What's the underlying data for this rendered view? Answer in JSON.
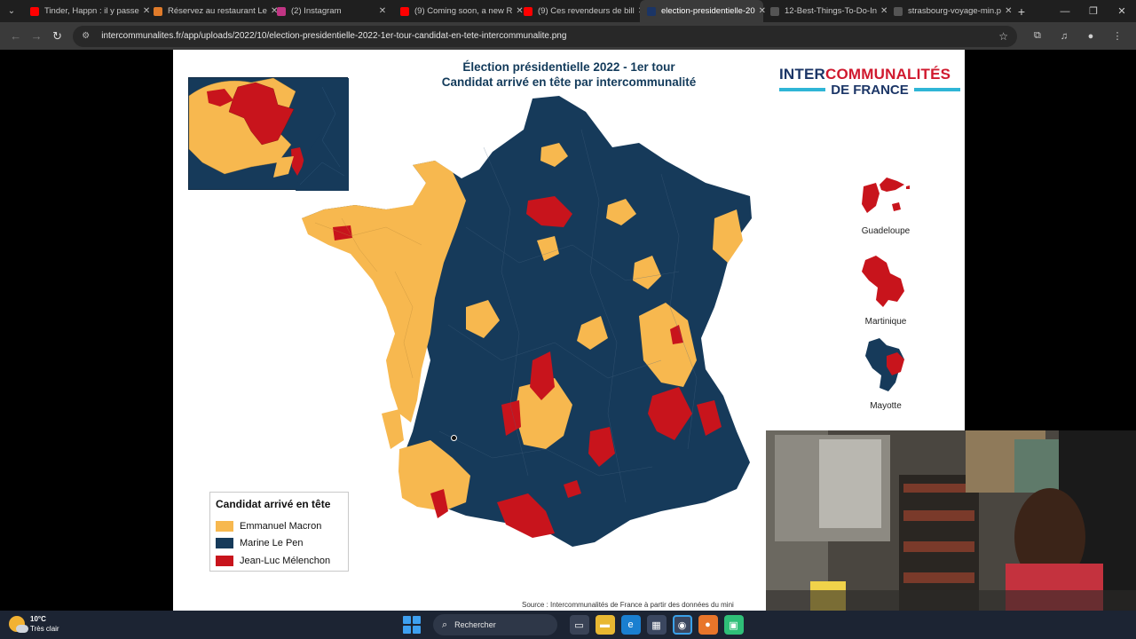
{
  "browser": {
    "tabs": [
      {
        "label": "Tinder, Happn : il y passe",
        "fav_color": "#ff0000",
        "active": false
      },
      {
        "label": "Réservez au restaurant Le",
        "fav_color": "#e07b2a",
        "active": false
      },
      {
        "label": "(2) Instagram",
        "fav_color": "#c13584",
        "active": false
      },
      {
        "label": "(9) Coming soon, a new R",
        "fav_color": "#ff0000",
        "active": false
      },
      {
        "label": "(9) Ces revendeurs de bill",
        "fav_color": "#ff0000",
        "active": false
      },
      {
        "label": "election-presidentielle-20",
        "fav_color": "#1b3566",
        "active": true
      },
      {
        "label": "12-Best-Things-To-Do-In",
        "fav_color": "#555555",
        "active": false
      },
      {
        "label": "strasbourg-voyage-min.p",
        "fav_color": "#555555",
        "active": false
      }
    ],
    "url": "intercommunalites.fr/app/uploads/2022/10/election-presidentielle-2022-1er-tour-candidat-en-tete-intercommunalite.png"
  },
  "map": {
    "title_line1": "Élection présidentielle 2022 - 1er tour",
    "title_line2": "Candidat arrivé en tête par intercommunalité",
    "logo_line1_part1": "INTER",
    "logo_line1_part2": "COMMUNALITÉS",
    "logo_line2": "DE FRANCE",
    "overseas": [
      {
        "label": "Guadeloupe"
      },
      {
        "label": "Martinique"
      },
      {
        "label": "Mayotte"
      }
    ],
    "legend": {
      "title": "Candidat arrivé en tête",
      "items": [
        {
          "label": "Emmanuel Macron",
          "color": "#f7b84f"
        },
        {
          "label": "Marine Le Pen",
          "color": "#163a5a"
        },
        {
          "label": "Jean-Luc Mélenchon",
          "color": "#c8141c"
        }
      ]
    },
    "source": "Source : Intercommunalités de France à partir des données du mini"
  },
  "taskbar": {
    "weather_temp": "10°C",
    "weather_desc": "Très clair",
    "search_placeholder": "Rechercher"
  }
}
